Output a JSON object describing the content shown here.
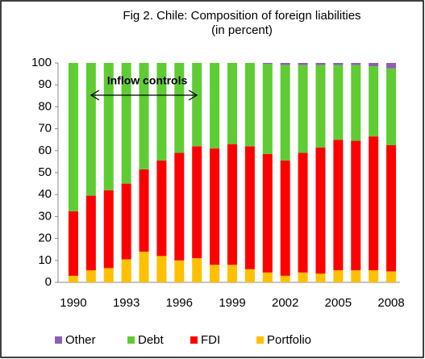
{
  "chart_data": {
    "type": "stacked_bar",
    "title": "Fig 2. Chile: Composition of foreign liabilities",
    "subtitle": "(in percent)",
    "annotation": "Inflow controls",
    "categories": [
      "1990",
      null,
      null,
      "1993",
      null,
      null,
      "1996",
      null,
      null,
      "1999",
      null,
      null,
      "2002",
      null,
      null,
      "2005",
      null,
      null,
      "2008"
    ],
    "series": [
      {
        "name": "Other",
        "color": "#8e5fb0",
        "values": [
          0,
          0,
          0,
          0,
          0,
          0,
          0,
          0,
          0,
          0,
          0,
          0.5,
          1,
          1,
          1,
          1,
          1,
          1.5,
          2.5
        ]
      },
      {
        "name": "Debt",
        "color": "#5fcc33",
        "values": [
          67.6,
          60.5,
          58,
          55,
          48.5,
          44.5,
          41,
          38,
          39,
          37,
          38,
          41,
          43.5,
          40,
          37.5,
          34,
          34.5,
          32,
          35
        ]
      },
      {
        "name": "FDI",
        "color": "#ff0000",
        "values": [
          29.4,
          34,
          35.5,
          34.5,
          37.5,
          43.5,
          49,
          51,
          53,
          55,
          56,
          54,
          52.5,
          54.5,
          57.5,
          59.5,
          59,
          61,
          57.5
        ]
      },
      {
        "name": "Portfolio",
        "color": "#ffc000",
        "values": [
          3,
          5.5,
          6.5,
          10.5,
          14,
          12,
          10,
          11,
          8,
          8,
          6,
          4.5,
          3,
          4.5,
          4,
          5.5,
          5.5,
          5.5,
          5
        ]
      }
    ],
    "ylim": [
      0,
      100
    ],
    "yticks": [
      0,
      10,
      20,
      30,
      40,
      50,
      60,
      70,
      80,
      90,
      100
    ],
    "legend": "bottom"
  }
}
